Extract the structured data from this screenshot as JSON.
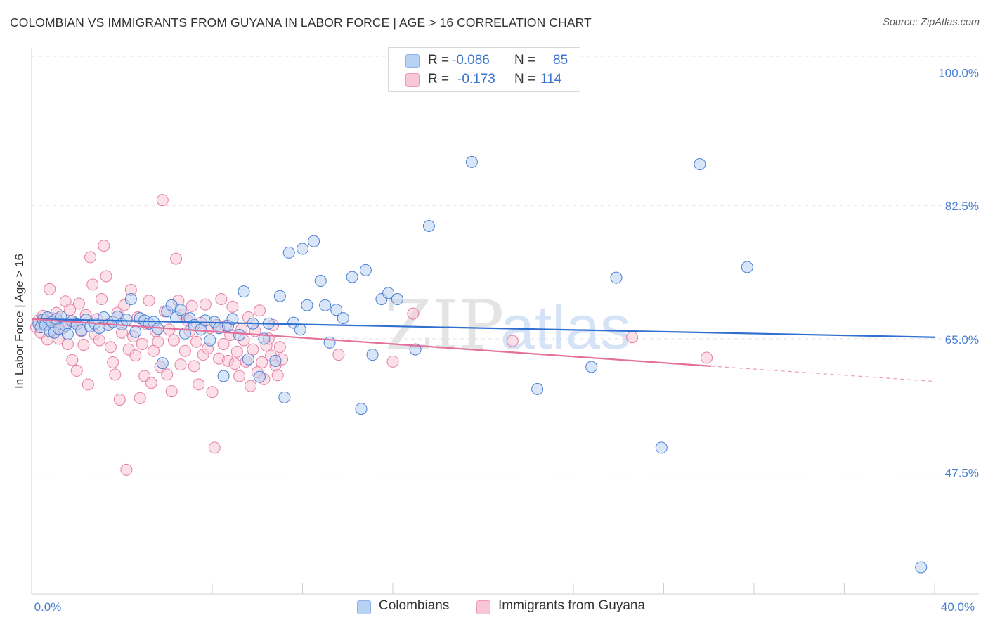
{
  "title": "COLOMBIAN VS IMMIGRANTS FROM GUYANA IN LABOR FORCE | AGE > 16 CORRELATION CHART",
  "source": "Source: ZipAtlas.com",
  "watermark": {
    "zip": "ZIP",
    "atlas": "atlas"
  },
  "legend": {
    "r_label": "R =",
    "n_label": "N =",
    "rows": [
      {
        "name": "Colombians",
        "r": "-0.086",
        "n": "85",
        "color": "#4a7fd4"
      },
      {
        "name": "Immigrants from Guyana",
        "r": "-0.173",
        "n": "114",
        "color": "#e46f9a"
      }
    ]
  },
  "colors": {
    "blue_fill": "#b8d2f3",
    "blue_stroke": "#4a7fd4",
    "blue_line": "#2f6fcf",
    "pink_fill": "#f8c6d6",
    "pink_stroke": "#e67fa3",
    "pink_line": "#e46f9a",
    "tick": "#4a7fd4"
  },
  "chart_data": {
    "type": "scatter",
    "title": "COLOMBIAN VS IMMIGRANTS FROM GUYANA IN LABOR FORCE | AGE > 16 CORRELATION CHART",
    "xlabel": "",
    "ylabel": "In Labor Force | Age > 16",
    "xlim": [
      0,
      40
    ],
    "ylim": [
      31.5,
      103
    ],
    "x_tick_labels": [
      "0.0%",
      "40.0%"
    ],
    "x_ticks": [
      0,
      40
    ],
    "y_tick_labels": [
      "100.0%",
      "82.5%",
      "65.0%",
      "47.5%"
    ],
    "y_ticks": [
      100,
      82.5,
      65,
      47.5
    ],
    "grid": "horizontal dashed",
    "legend_position": "top-center",
    "series": [
      {
        "name": "Colombians",
        "r": -0.086,
        "n": 85,
        "trend": {
          "x": [
            0,
            40
          ],
          "y": [
            67.6,
            65.2
          ]
        },
        "points": [
          [
            0.3,
            67.0
          ],
          [
            0.4,
            66.5
          ],
          [
            0.5,
            67.5
          ],
          [
            0.6,
            66.8
          ],
          [
            0.7,
            67.8
          ],
          [
            0.8,
            66.0
          ],
          [
            0.9,
            67.2
          ],
          [
            1.0,
            65.8
          ],
          [
            1.1,
            67.6
          ],
          [
            1.2,
            66.3
          ],
          [
            1.3,
            67.9
          ],
          [
            1.5,
            66.7
          ],
          [
            1.6,
            65.6
          ],
          [
            1.8,
            67.3
          ],
          [
            2.0,
            66.9
          ],
          [
            2.2,
            66.1
          ],
          [
            2.4,
            67.5
          ],
          [
            2.6,
            66.6
          ],
          [
            2.8,
            67.0
          ],
          [
            3.0,
            66.4
          ],
          [
            3.2,
            67.8
          ],
          [
            3.4,
            66.8
          ],
          [
            3.6,
            67.2
          ],
          [
            3.8,
            67.9
          ],
          [
            4.0,
            66.9
          ],
          [
            4.2,
            67.5
          ],
          [
            4.4,
            70.2
          ],
          [
            4.6,
            65.9
          ],
          [
            4.8,
            67.7
          ],
          [
            5.0,
            67.4
          ],
          [
            5.2,
            67.0
          ],
          [
            5.4,
            67.2
          ],
          [
            5.6,
            66.3
          ],
          [
            5.8,
            61.8
          ],
          [
            6.0,
            68.6
          ],
          [
            6.2,
            69.4
          ],
          [
            6.4,
            67.8
          ],
          [
            6.6,
            68.8
          ],
          [
            6.8,
            65.7
          ],
          [
            7.0,
            67.7
          ],
          [
            7.2,
            66.8
          ],
          [
            7.5,
            66.2
          ],
          [
            7.7,
            67.4
          ],
          [
            7.9,
            64.8
          ],
          [
            8.1,
            67.2
          ],
          [
            8.3,
            66.4
          ],
          [
            8.5,
            60.1
          ],
          [
            8.7,
            66.7
          ],
          [
            8.9,
            67.6
          ],
          [
            9.2,
            65.5
          ],
          [
            9.4,
            71.2
          ],
          [
            9.6,
            62.3
          ],
          [
            9.8,
            67.0
          ],
          [
            10.1,
            60.0
          ],
          [
            10.3,
            65.0
          ],
          [
            10.5,
            67.0
          ],
          [
            10.8,
            62.1
          ],
          [
            11.0,
            70.6
          ],
          [
            11.2,
            57.3
          ],
          [
            11.4,
            76.3
          ],
          [
            11.6,
            67.1
          ],
          [
            11.9,
            66.2
          ],
          [
            12.0,
            76.8
          ],
          [
            12.2,
            69.4
          ],
          [
            12.5,
            77.8
          ],
          [
            12.8,
            72.6
          ],
          [
            13.0,
            69.4
          ],
          [
            13.2,
            64.5
          ],
          [
            13.5,
            68.8
          ],
          [
            13.8,
            67.7
          ],
          [
            14.2,
            73.1
          ],
          [
            14.6,
            55.8
          ],
          [
            14.8,
            74.0
          ],
          [
            15.1,
            62.9
          ],
          [
            15.5,
            70.2
          ],
          [
            15.8,
            71.0
          ],
          [
            16.2,
            70.2
          ],
          [
            17.0,
            63.6
          ],
          [
            17.6,
            79.8
          ],
          [
            19.5,
            88.2
          ],
          [
            22.4,
            58.4
          ],
          [
            24.8,
            61.3
          ],
          [
            25.9,
            73.0
          ],
          [
            27.9,
            50.7
          ],
          [
            29.6,
            87.9
          ],
          [
            31.7,
            74.4
          ],
          [
            39.4,
            35.0
          ]
        ]
      },
      {
        "name": "Immigrants from Guyana",
        "r": -0.173,
        "n": 114,
        "trend": {
          "x": [
            0,
            30.1
          ],
          "y": [
            67.6,
            61.4
          ]
        },
        "trend_dashed": {
          "x": [
            30.1,
            40
          ],
          "y": [
            61.4,
            59.4
          ]
        },
        "points": [
          [
            0.2,
            66.5
          ],
          [
            0.3,
            67.4
          ],
          [
            0.4,
            65.8
          ],
          [
            0.5,
            68.0
          ],
          [
            0.6,
            66.9
          ],
          [
            0.7,
            64.9
          ],
          [
            0.8,
            71.5
          ],
          [
            0.9,
            67.7
          ],
          [
            1.0,
            66.2
          ],
          [
            1.1,
            68.4
          ],
          [
            1.2,
            65.0
          ],
          [
            1.3,
            67.0
          ],
          [
            1.4,
            66.4
          ],
          [
            1.5,
            69.9
          ],
          [
            1.6,
            64.3
          ],
          [
            1.7,
            68.8
          ],
          [
            1.8,
            62.2
          ],
          [
            1.9,
            67.1
          ],
          [
            2.0,
            60.8
          ],
          [
            2.1,
            69.6
          ],
          [
            2.2,
            66.0
          ],
          [
            2.3,
            64.2
          ],
          [
            2.4,
            68.1
          ],
          [
            2.5,
            59.0
          ],
          [
            2.6,
            75.7
          ],
          [
            2.7,
            72.1
          ],
          [
            2.8,
            65.6
          ],
          [
            2.9,
            67.6
          ],
          [
            3.0,
            64.8
          ],
          [
            3.1,
            70.2
          ],
          [
            3.2,
            77.2
          ],
          [
            3.3,
            73.2
          ],
          [
            3.4,
            66.9
          ],
          [
            3.5,
            63.9
          ],
          [
            3.6,
            61.9
          ],
          [
            3.7,
            60.3
          ],
          [
            3.8,
            68.4
          ],
          [
            3.9,
            57.0
          ],
          [
            4.0,
            65.8
          ],
          [
            4.1,
            69.4
          ],
          [
            4.2,
            47.8
          ],
          [
            4.3,
            63.6
          ],
          [
            4.4,
            71.4
          ],
          [
            4.5,
            65.3
          ],
          [
            4.6,
            62.8
          ],
          [
            4.7,
            67.8
          ],
          [
            4.8,
            57.2
          ],
          [
            4.9,
            64.3
          ],
          [
            5.0,
            60.1
          ],
          [
            5.1,
            66.9
          ],
          [
            5.2,
            70.0
          ],
          [
            5.3,
            59.2
          ],
          [
            5.4,
            63.4
          ],
          [
            5.5,
            66.0
          ],
          [
            5.6,
            64.6
          ],
          [
            5.7,
            61.3
          ],
          [
            5.8,
            83.2
          ],
          [
            5.9,
            68.6
          ],
          [
            6.0,
            60.3
          ],
          [
            6.1,
            66.2
          ],
          [
            6.2,
            58.1
          ],
          [
            6.3,
            64.8
          ],
          [
            6.4,
            75.5
          ],
          [
            6.5,
            70.0
          ],
          [
            6.6,
            61.6
          ],
          [
            6.7,
            68.2
          ],
          [
            6.8,
            63.4
          ],
          [
            6.9,
            67.4
          ],
          [
            7.0,
            66.0
          ],
          [
            7.1,
            69.3
          ],
          [
            7.2,
            61.4
          ],
          [
            7.3,
            64.6
          ],
          [
            7.4,
            59.0
          ],
          [
            7.5,
            67.1
          ],
          [
            7.6,
            62.9
          ],
          [
            7.7,
            69.5
          ],
          [
            7.8,
            63.7
          ],
          [
            7.9,
            66.4
          ],
          [
            8.0,
            58.0
          ],
          [
            8.1,
            50.7
          ],
          [
            8.2,
            66.8
          ],
          [
            8.3,
            62.4
          ],
          [
            8.4,
            70.2
          ],
          [
            8.5,
            64.3
          ],
          [
            8.6,
            66.7
          ],
          [
            8.7,
            62.1
          ],
          [
            8.8,
            65.5
          ],
          [
            8.9,
            69.2
          ],
          [
            9.0,
            61.7
          ],
          [
            9.1,
            63.3
          ],
          [
            9.2,
            60.1
          ],
          [
            9.3,
            66.3
          ],
          [
            9.4,
            64.8
          ],
          [
            9.5,
            62.0
          ],
          [
            9.6,
            67.8
          ],
          [
            9.7,
            58.8
          ],
          [
            9.8,
            63.6
          ],
          [
            9.9,
            66.0
          ],
          [
            10.0,
            60.6
          ],
          [
            10.1,
            68.7
          ],
          [
            10.2,
            61.9
          ],
          [
            10.3,
            59.7
          ],
          [
            10.4,
            64.1
          ],
          [
            10.5,
            65.0
          ],
          [
            10.6,
            62.8
          ],
          [
            10.7,
            66.8
          ],
          [
            10.8,
            61.5
          ],
          [
            10.9,
            60.2
          ],
          [
            11.0,
            63.9
          ],
          [
            11.1,
            62.3
          ],
          [
            13.6,
            62.9
          ],
          [
            16.0,
            62.0
          ],
          [
            16.9,
            68.3
          ],
          [
            21.3,
            64.7
          ],
          [
            26.6,
            65.2
          ],
          [
            29.9,
            62.5
          ]
        ]
      }
    ]
  }
}
